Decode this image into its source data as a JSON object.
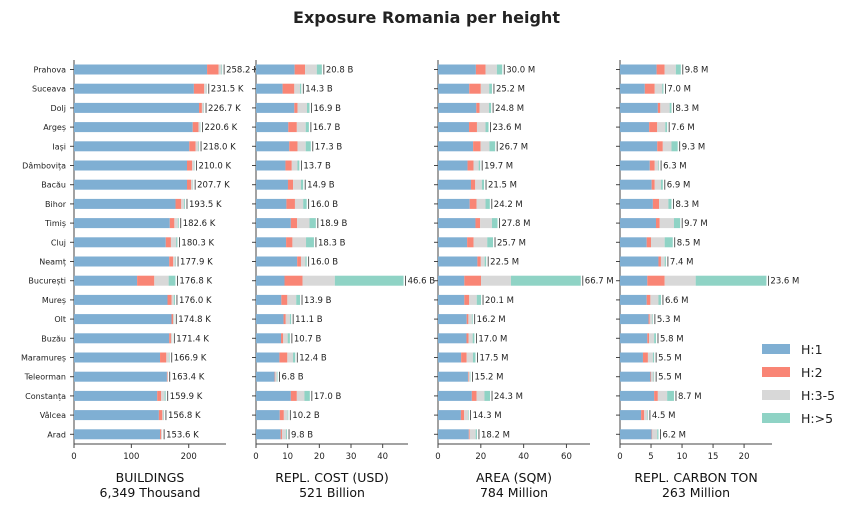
{
  "title": "Exposure Romania per height",
  "chart_data": {
    "type": "bar",
    "orientation": "horizontal",
    "stacked": true,
    "categories": [
      "Prahova",
      "Suceava",
      "Dolj",
      "Argeș",
      "Iași",
      "Dâmbovița",
      "Bacău",
      "Bihor",
      "Timiș",
      "Cluj",
      "Neamț",
      "București",
      "Mureș",
      "Olt",
      "Buzău",
      "Maramureș",
      "Teleorman",
      "Constanța",
      "Vâlcea",
      "Arad"
    ],
    "legend": {
      "position": "right",
      "entries": [
        "H:1",
        "H:2",
        "H:3-5",
        "H:>5"
      ],
      "colors": [
        "#7fafd3",
        "#f98575",
        "#d8d8d8",
        "#8fd3c5"
      ]
    },
    "panels": [
      {
        "xlabel": "BUILDINGS",
        "total": "6,349 Thousand",
        "xlim": [
          0,
          265
        ],
        "ticks": [
          0,
          100,
          200
        ],
        "labels": [
          "258.2 K",
          "231.5 K",
          "226.7 K",
          "220.6 K",
          "218.0 K",
          "210.0 K",
          "207.7 K",
          "193.5 K",
          "182.6 K",
          "180.3 K",
          "177.9 K",
          "176.8 K",
          "176.0 K",
          "174.8 K",
          "171.4 K",
          "166.9 K",
          "163.4 K",
          "159.9 K",
          "156.8 K",
          "153.6 K"
        ],
        "series": [
          {
            "name": "H:1",
            "values": [
              232,
              209,
              218,
              207,
              201,
              197,
              197,
              177,
              167,
              160,
              166,
              110,
              163,
              170,
              166,
              150,
              162,
              145,
              148,
              150
            ]
          },
          {
            "name": "H:2",
            "values": [
              20,
              18,
              5,
              10,
              11,
              9,
              7,
              10,
              8,
              9,
              7,
              30,
              7,
              3,
              3,
              11,
              1,
              7,
              6,
              2
            ]
          },
          {
            "name": "H:3-5",
            "values": [
              5,
              4,
              3,
              3,
              5,
              3,
              3,
              5,
              6,
              9,
              4,
              25,
              4,
              1,
              2,
              5,
              0.3,
              6,
              2,
              1.5
            ]
          },
          {
            "name": "H:>5",
            "values": [
              1.2,
              0.5,
              0.7,
              0.6,
              1,
              1,
              0.7,
              1.5,
              1.6,
              2.3,
              0.9,
              11.8,
              2,
              0.8,
              0.4,
              0.9,
              0.1,
              1.9,
              0.8,
              0.1
            ]
          }
        ]
      },
      {
        "xlabel": "REPL. COST (USD)",
        "total": "521 Billion",
        "xlim": [
          0,
          48
        ],
        "ticks": [
          0,
          10,
          20,
          30,
          40
        ],
        "labels": [
          "20.8 B",
          "14.3 B",
          "16.9 B",
          "16.7 B",
          "17.3 B",
          "13.7 B",
          "14.9 B",
          "16.0 B",
          "18.9 B",
          "18.3 B",
          "16.0 B",
          "46.6 B",
          "13.9 B",
          "11.1 B",
          "10.7 B",
          "12.4 B",
          "6.8 B",
          "17.0 B",
          "10.2 B",
          "9.8 B"
        ],
        "series": [
          {
            "name": "H:1",
            "values": [
              12.2,
              8.4,
              12.1,
              10.2,
              10.5,
              9.3,
              10.1,
              9.6,
              11.0,
              9.5,
              13.0,
              9.0,
              8.0,
              8.7,
              7.9,
              7.4,
              5.9,
              11.0,
              7.5,
              7.8
            ]
          },
          {
            "name": "H:2",
            "values": [
              3.3,
              3.7,
              1.0,
              2.7,
              2.6,
              2.0,
              1.6,
              2.7,
              2.0,
              2.0,
              1.2,
              5.7,
              1.9,
              0.7,
              0.7,
              2.5,
              0.2,
              1.9,
              1.3,
              0.4
            ]
          },
          {
            "name": "H:3-5",
            "values": [
              3.7,
              1.8,
              3.0,
              2.8,
              2.6,
              1.8,
              2.5,
              2.6,
              3.9,
              4.3,
              1.4,
              10.2,
              2.8,
              1.3,
              1.4,
              1.8,
              0.5,
              2.4,
              1.2,
              1.3
            ]
          },
          {
            "name": "H:>5",
            "values": [
              1.6,
              0.4,
              0.8,
              1.0,
              1.6,
              0.6,
              0.7,
              1.1,
              2.0,
              2.5,
              0.4,
              21.7,
              1.2,
              0.4,
              0.7,
              0.7,
              0.2,
              1.7,
              0.2,
              0.3
            ]
          }
        ]
      },
      {
        "xlabel": "AREA (SQM)",
        "total": "784 Million",
        "xlim": [
          0,
          71
        ],
        "ticks": [
          0,
          20,
          40,
          60
        ],
        "labels": [
          "30.0 M",
          "25.2 M",
          "24.8 M",
          "23.6 M",
          "26.7 M",
          "19.7 M",
          "21.5 M",
          "24.2 M",
          "27.8 M",
          "25.7 M",
          "22.5 M",
          "66.7 M",
          "20.1 M",
          "16.2 M",
          "17.0 M",
          "17.5 M",
          "15.2 M",
          "24.3 M",
          "14.3 M",
          "18.2 M"
        ],
        "series": [
          {
            "name": "H:1",
            "values": [
              17.7,
              14.6,
              17.9,
              14.5,
              16.4,
              13.8,
              15.4,
              14.8,
              17.5,
              13.6,
              18.4,
              12.3,
              12.3,
              13.4,
              13.3,
              10.8,
              14.0,
              15.8,
              10.7,
              14.4
            ]
          },
          {
            "name": "H:2",
            "values": [
              4.5,
              5.4,
              1.5,
              3.7,
              3.5,
              2.8,
              2.0,
              3.2,
              2.2,
              3.0,
              1.6,
              7.8,
              2.3,
              0.8,
              1.0,
              2.6,
              0.3,
              2.2,
              1.5,
              0.4
            ]
          },
          {
            "name": "H:3-5",
            "values": [
              5.3,
              3.9,
              4.4,
              4.0,
              4.1,
              2.4,
              3.1,
              4.2,
              5.5,
              6.4,
              1.8,
              14.0,
              3.5,
              1.6,
              1.9,
              2.9,
              0.7,
              3.7,
              1.8,
              2.8
            ]
          },
          {
            "name": "H:>5",
            "values": [
              2.5,
              1.3,
              1.0,
              1.4,
              2.7,
              0.7,
              1.0,
              2.0,
              2.6,
              2.7,
              0.7,
              32.6,
              2.0,
              0.4,
              0.8,
              1.2,
              0.2,
              2.6,
              0.3,
              0.6
            ]
          }
        ]
      },
      {
        "xlabel": "REPL. CARBON TON",
        "total": "263 Million",
        "xlim": [
          0,
          24.5
        ],
        "ticks": [
          0,
          5,
          10,
          15,
          20
        ],
        "labels": [
          "9.8 M",
          "7.0 M",
          "8.3 M",
          "7.6 M",
          "9.3 M",
          "6.3 M",
          "6.9 M",
          "8.3 M",
          "9.7 M",
          "8.5 M",
          "7.4 M",
          "23.6 M",
          "6.6 M",
          "5.3 M",
          "5.8 M",
          "5.5 M",
          "5.5 M",
          "8.7 M",
          "4.5 M",
          "6.2 M"
        ],
        "series": [
          {
            "name": "H:1",
            "values": [
              5.9,
              4.0,
              6.1,
              4.7,
              6.0,
              4.8,
              5.1,
              5.3,
              5.8,
              4.3,
              6.2,
              4.4,
              4.3,
              4.6,
              4.4,
              3.7,
              4.9,
              5.5,
              3.4,
              5.1
            ]
          },
          {
            "name": "H:2",
            "values": [
              1.3,
              1.6,
              0.4,
              1.3,
              0.9,
              0.8,
              0.5,
              1.0,
              0.6,
              0.7,
              0.4,
              2.8,
              0.6,
              0.2,
              0.3,
              0.8,
              0.1,
              0.6,
              0.5,
              0.1
            ]
          },
          {
            "name": "H:3-5",
            "values": [
              1.8,
              1.2,
              1.5,
              1.3,
              1.4,
              0.6,
              1.0,
              1.5,
              2.3,
              2.2,
              0.6,
              5.0,
              1.3,
              0.4,
              0.8,
              0.8,
              0.4,
              1.5,
              0.5,
              0.8
            ]
          },
          {
            "name": "H:>5",
            "values": [
              0.8,
              0.2,
              0.3,
              0.3,
              1.0,
              0.1,
              0.3,
              0.5,
              1.0,
              1.3,
              0.2,
              11.4,
              0.4,
              0.1,
              0.3,
              0.2,
              0.1,
              1.1,
              0.1,
              0.2
            ]
          }
        ]
      }
    ]
  }
}
